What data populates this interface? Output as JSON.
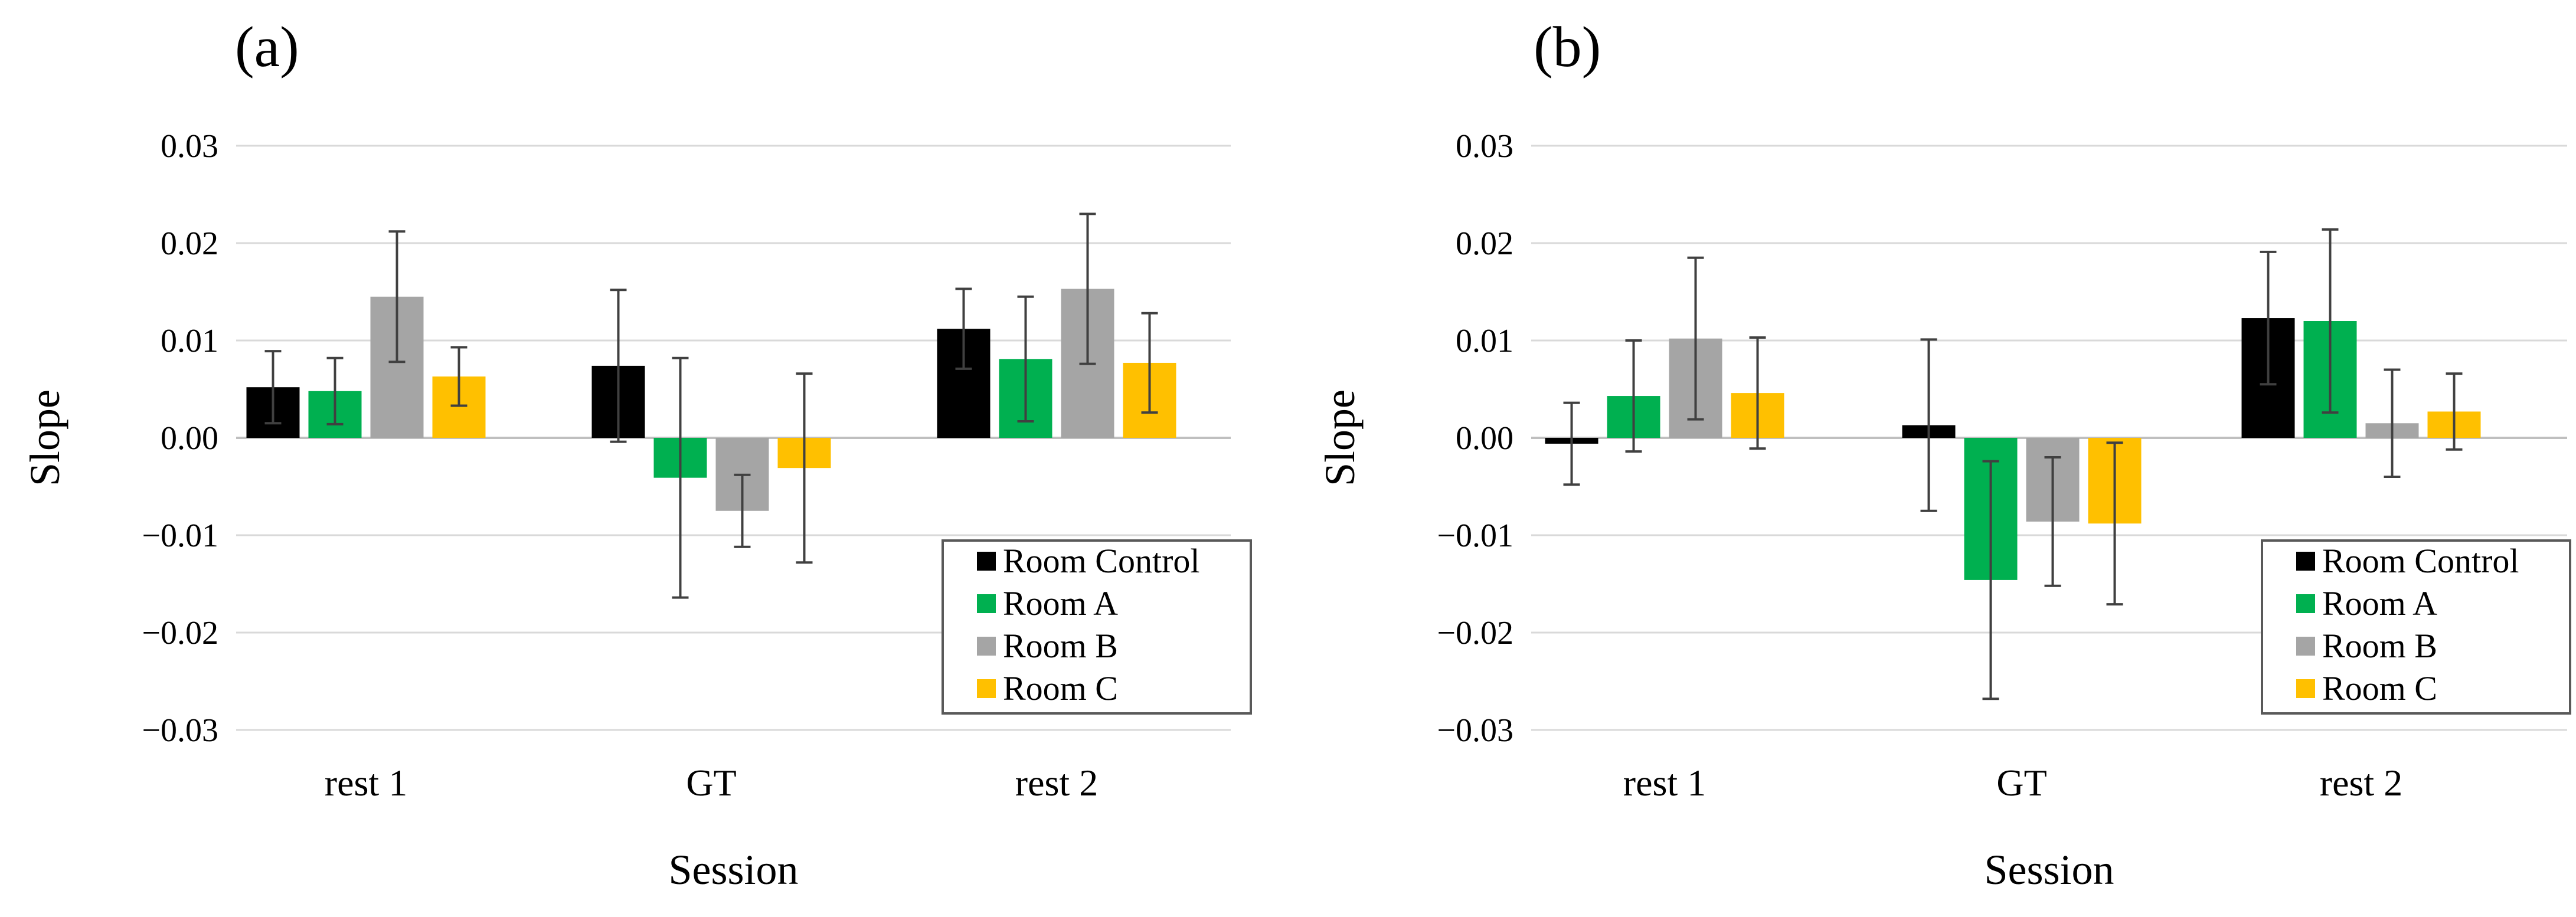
{
  "chart_data": [
    {
      "panel": "(a)",
      "type": "bar",
      "title": "",
      "xlabel": "Session",
      "ylabel": "Slope",
      "ylim": [
        -0.03,
        0.03
      ],
      "yticks": [
        0.03,
        0.02,
        0.01,
        0.0,
        -0.01,
        -0.02,
        -0.03
      ],
      "ytick_labels": [
        "0.03",
        "0.02",
        "0.01",
        "0.00",
        "−0.01",
        "−0.02",
        "−0.03"
      ],
      "grid": true,
      "categories": [
        "rest 1",
        "GT",
        "rest 2"
      ],
      "legend_position": "bottom-right",
      "series": [
        {
          "name": "Room Control",
          "color": "#000000",
          "values": [
            0.0052,
            0.0074,
            0.0112
          ],
          "errors": [
            0.0037,
            0.0078,
            0.0041
          ]
        },
        {
          "name": "Room A",
          "color": "#00B050",
          "values": [
            0.0048,
            -0.0041,
            0.0081
          ],
          "errors": [
            0.0034,
            0.0123,
            0.0064
          ]
        },
        {
          "name": "Room B",
          "color": "#A5A5A5",
          "values": [
            0.0145,
            -0.0075,
            0.0153
          ],
          "errors": [
            0.0067,
            0.0037,
            0.0077
          ]
        },
        {
          "name": "Room C",
          "color": "#FFC000",
          "values": [
            0.0063,
            -0.0031,
            0.0077
          ],
          "errors": [
            0.003,
            0.0097,
            0.0051
          ]
        }
      ]
    },
    {
      "panel": "(b)",
      "type": "bar",
      "title": "",
      "xlabel": "Session",
      "ylabel": "Slope",
      "ylim": [
        -0.03,
        0.03
      ],
      "yticks": [
        0.03,
        0.02,
        0.01,
        0.0,
        -0.01,
        -0.02,
        -0.03
      ],
      "ytick_labels": [
        "0.03",
        "0.02",
        "0.01",
        "0.00",
        "−0.01",
        "−0.02",
        "−0.03"
      ],
      "grid": true,
      "categories": [
        "rest 1",
        "GT",
        "rest 2"
      ],
      "legend_position": "bottom-right",
      "series": [
        {
          "name": "Room Control",
          "color": "#000000",
          "values": [
            -0.0006,
            0.0013,
            0.0123
          ],
          "errors": [
            0.0042,
            0.0088,
            0.0068
          ]
        },
        {
          "name": "Room A",
          "color": "#00B050",
          "values": [
            0.0043,
            -0.0146,
            0.012
          ],
          "errors": [
            0.0057,
            0.0122,
            0.0094
          ]
        },
        {
          "name": "Room B",
          "color": "#A5A5A5",
          "values": [
            0.0102,
            -0.0086,
            0.0015
          ],
          "errors": [
            0.0083,
            0.0066,
            0.0055
          ]
        },
        {
          "name": "Room C",
          "color": "#FFC000",
          "values": [
            0.0046,
            -0.0088,
            0.0027
          ],
          "errors": [
            0.0057,
            0.0083,
            0.0039
          ]
        }
      ]
    }
  ]
}
